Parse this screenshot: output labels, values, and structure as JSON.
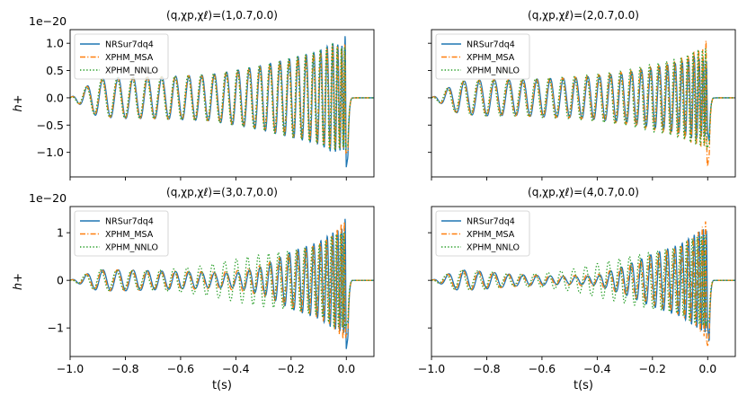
{
  "chart_data": [
    {
      "type": "line",
      "title": "(q,χp,χℓ)=(1,0.7,0.0)",
      "xlabel": "",
      "ylabel": "h+",
      "offset_text": "1e−20",
      "xlim": [
        -1.0,
        0.1
      ],
      "ylim": [
        -1.45,
        1.25
      ],
      "xticks": [
        -1.0,
        -0.8,
        -0.6,
        -0.4,
        -0.2,
        0.0
      ],
      "xtick_labels": [],
      "yticks": [
        -1.0,
        -0.5,
        0.0,
        0.5,
        1.0
      ],
      "ytick_labels": [
        "−1.0",
        "−0.5",
        "0.0",
        "0.5",
        "1.0"
      ],
      "legend_position": "upper-left",
      "series": [
        {
          "name": "NRSur7dq4",
          "color": "#1f77b4",
          "dash": "solid",
          "points": [
            [
              -1.0,
              0.0
            ],
            [
              -0.9,
              0.35
            ],
            [
              -0.8,
              -0.38
            ],
            [
              -0.7,
              0.38
            ],
            [
              -0.6,
              -0.4
            ],
            [
              -0.5,
              0.42
            ],
            [
              -0.4,
              -0.5
            ],
            [
              -0.3,
              0.6
            ],
            [
              -0.2,
              -0.72
            ],
            [
              -0.1,
              0.85
            ],
            [
              -0.05,
              -1.0
            ],
            [
              -0.01,
              0.95
            ],
            [
              0.0,
              -1.28
            ],
            [
              0.005,
              1.12
            ],
            [
              0.02,
              0.05
            ],
            [
              0.1,
              0.0
            ]
          ]
        },
        {
          "name": "XPHM_MSA",
          "color": "#ff7f0e",
          "dash": "dashdot",
          "points": [
            [
              -1.0,
              0.0
            ],
            [
              -0.9,
              0.34
            ],
            [
              -0.8,
              -0.37
            ],
            [
              -0.7,
              0.38
            ],
            [
              -0.6,
              -0.4
            ],
            [
              -0.5,
              0.42
            ],
            [
              -0.4,
              -0.49
            ],
            [
              -0.3,
              0.58
            ],
            [
              -0.2,
              -0.7
            ],
            [
              -0.1,
              0.82
            ],
            [
              -0.05,
              -0.95
            ],
            [
              -0.01,
              0.92
            ],
            [
              0.0,
              -1.05
            ],
            [
              0.005,
              1.05
            ],
            [
              0.02,
              0.05
            ],
            [
              0.1,
              0.0
            ]
          ]
        },
        {
          "name": "XPHM_NNLO",
          "color": "#2ca02c",
          "dash": "dotted",
          "points": [
            [
              -1.0,
              0.0
            ],
            [
              -0.9,
              0.34
            ],
            [
              -0.8,
              -0.37
            ],
            [
              -0.7,
              0.38
            ],
            [
              -0.6,
              -0.4
            ],
            [
              -0.5,
              0.43
            ],
            [
              -0.4,
              -0.5
            ],
            [
              -0.3,
              0.6
            ],
            [
              -0.2,
              -0.72
            ],
            [
              -0.1,
              0.84
            ],
            [
              -0.05,
              -0.98
            ],
            [
              -0.01,
              0.9
            ],
            [
              0.0,
              -1.0
            ],
            [
              0.005,
              0.98
            ],
            [
              0.02,
              0.05
            ],
            [
              0.1,
              0.0
            ]
          ]
        }
      ]
    },
    {
      "type": "line",
      "title": "(q,χp,χℓ)=(2,0.7,0.0)",
      "xlabel": "",
      "ylabel": "",
      "offset_text": "",
      "xlim": [
        -1.0,
        0.1
      ],
      "ylim": [
        -1.45,
        1.25
      ],
      "xticks": [
        -1.0,
        -0.8,
        -0.6,
        -0.4,
        -0.2,
        0.0
      ],
      "xtick_labels": [],
      "yticks": [
        -1.0,
        -0.5,
        0.0,
        0.5,
        1.0
      ],
      "ytick_labels": [],
      "legend_position": "upper-left",
      "series": [
        {
          "name": "NRSur7dq4",
          "color": "#1f77b4",
          "dash": "solid",
          "points": [
            [
              -1.0,
              0.0
            ],
            [
              -0.9,
              0.3
            ],
            [
              -0.8,
              -0.33
            ],
            [
              -0.7,
              0.32
            ],
            [
              -0.6,
              -0.35
            ],
            [
              -0.5,
              0.36
            ],
            [
              -0.4,
              -0.4
            ],
            [
              -0.3,
              0.45
            ],
            [
              -0.2,
              -0.55
            ],
            [
              -0.1,
              0.65
            ],
            [
              -0.05,
              -0.75
            ],
            [
              -0.01,
              0.7
            ],
            [
              0.0,
              -0.65
            ],
            [
              0.005,
              0.8
            ],
            [
              0.02,
              0.05
            ],
            [
              0.1,
              0.0
            ]
          ]
        },
        {
          "name": "XPHM_MSA",
          "color": "#ff7f0e",
          "dash": "dashdot",
          "points": [
            [
              -1.0,
              0.0
            ],
            [
              -0.9,
              0.3
            ],
            [
              -0.8,
              -0.33
            ],
            [
              -0.7,
              0.33
            ],
            [
              -0.6,
              -0.35
            ],
            [
              -0.5,
              0.37
            ],
            [
              -0.4,
              -0.42
            ],
            [
              -0.3,
              0.48
            ],
            [
              -0.2,
              -0.58
            ],
            [
              -0.1,
              0.7
            ],
            [
              -0.05,
              -0.85
            ],
            [
              -0.01,
              0.9
            ],
            [
              0.0,
              -1.3
            ],
            [
              0.005,
              1.12
            ],
            [
              0.02,
              0.05
            ],
            [
              0.1,
              0.0
            ]
          ]
        },
        {
          "name": "XPHM_NNLO",
          "color": "#2ca02c",
          "dash": "dotted",
          "points": [
            [
              -1.0,
              0.0
            ],
            [
              -0.9,
              0.3
            ],
            [
              -0.8,
              -0.33
            ],
            [
              -0.7,
              0.33
            ],
            [
              -0.6,
              -0.36
            ],
            [
              -0.5,
              0.38
            ],
            [
              -0.4,
              -0.44
            ],
            [
              -0.3,
              0.5
            ],
            [
              -0.2,
              -0.62
            ],
            [
              -0.1,
              0.72
            ],
            [
              -0.05,
              -0.85
            ],
            [
              -0.01,
              0.88
            ],
            [
              0.0,
              -1.0
            ],
            [
              0.005,
              0.95
            ],
            [
              0.02,
              0.05
            ],
            [
              0.1,
              0.0
            ]
          ]
        }
      ]
    },
    {
      "type": "line",
      "title": "(q,χp,χℓ)=(3,0.7,0.0)",
      "xlabel": "t(s)",
      "ylabel": "h+",
      "offset_text": "1e−20",
      "xlim": [
        -1.0,
        0.1
      ],
      "ylim": [
        -1.6,
        1.55
      ],
      "xticks": [
        -1.0,
        -0.8,
        -0.6,
        -0.4,
        -0.2,
        0.0
      ],
      "xtick_labels": [
        "−1.0",
        "−0.8",
        "−0.6",
        "−0.4",
        "−0.2",
        "0.0"
      ],
      "yticks": [
        -1,
        0,
        1
      ],
      "ytick_labels": [
        "−1",
        "0",
        "1"
      ],
      "legend_position": "upper-left",
      "series": [
        {
          "name": "NRSur7dq4",
          "color": "#1f77b4",
          "dash": "solid",
          "points": [
            [
              -1.0,
              0.0
            ],
            [
              -0.9,
              0.22
            ],
            [
              -0.8,
              -0.22
            ],
            [
              -0.7,
              0.2
            ],
            [
              -0.6,
              -0.18
            ],
            [
              -0.5,
              0.16
            ],
            [
              -0.4,
              -0.15
            ],
            [
              -0.3,
              0.3
            ],
            [
              -0.2,
              -0.6
            ],
            [
              -0.1,
              0.8
            ],
            [
              -0.05,
              -1.0
            ],
            [
              -0.01,
              1.1
            ],
            [
              0.0,
              -1.45
            ],
            [
              0.005,
              1.25
            ],
            [
              0.02,
              0.05
            ],
            [
              0.1,
              0.0
            ]
          ]
        },
        {
          "name": "XPHM_MSA",
          "color": "#ff7f0e",
          "dash": "dashdot",
          "points": [
            [
              -1.0,
              0.0
            ],
            [
              -0.9,
              0.22
            ],
            [
              -0.8,
              -0.22
            ],
            [
              -0.7,
              0.2
            ],
            [
              -0.6,
              -0.19
            ],
            [
              -0.5,
              0.18
            ],
            [
              -0.4,
              -0.2
            ],
            [
              -0.3,
              0.32
            ],
            [
              -0.2,
              -0.58
            ],
            [
              -0.1,
              0.78
            ],
            [
              -0.05,
              -0.95
            ],
            [
              -0.01,
              1.25
            ],
            [
              0.0,
              -1.2
            ],
            [
              0.005,
              1.15
            ],
            [
              0.02,
              0.05
            ],
            [
              0.1,
              0.0
            ]
          ]
        },
        {
          "name": "XPHM_NNLO",
          "color": "#2ca02c",
          "dash": "dotted",
          "points": [
            [
              -1.0,
              0.0
            ],
            [
              -0.9,
              0.22
            ],
            [
              -0.8,
              -0.2
            ],
            [
              -0.7,
              0.2
            ],
            [
              -0.6,
              -0.25
            ],
            [
              -0.5,
              0.32
            ],
            [
              -0.4,
              -0.45
            ],
            [
              -0.3,
              0.55
            ],
            [
              -0.2,
              -0.62
            ],
            [
              -0.1,
              0.72
            ],
            [
              -0.05,
              -0.95
            ],
            [
              -0.01,
              1.0
            ],
            [
              0.0,
              -1.05
            ],
            [
              0.005,
              0.95
            ],
            [
              0.02,
              0.05
            ],
            [
              0.1,
              0.0
            ]
          ]
        }
      ]
    },
    {
      "type": "line",
      "title": "(q,χp,χℓ)=(4,0.7,0.0)",
      "xlabel": "t(s)",
      "ylabel": "",
      "offset_text": "",
      "xlim": [
        -1.0,
        0.1
      ],
      "ylim": [
        -1.6,
        1.55
      ],
      "xticks": [
        -1.0,
        -0.8,
        -0.6,
        -0.4,
        -0.2,
        0.0
      ],
      "xtick_labels": [
        "−1.0",
        "−0.8",
        "−0.6",
        "−0.4",
        "−0.2",
        "0.0"
      ],
      "yticks": [
        -1,
        0,
        1
      ],
      "ytick_labels": [],
      "legend_position": "upper-left",
      "series": [
        {
          "name": "NRSur7dq4",
          "color": "#1f77b4",
          "dash": "solid",
          "points": [
            [
              -1.0,
              0.0
            ],
            [
              -0.9,
              0.22
            ],
            [
              -0.8,
              -0.18
            ],
            [
              -0.7,
              0.12
            ],
            [
              -0.6,
              -0.1
            ],
            [
              -0.5,
              0.08
            ],
            [
              -0.4,
              -0.1
            ],
            [
              -0.3,
              0.3
            ],
            [
              -0.2,
              -0.55
            ],
            [
              -0.1,
              0.75
            ],
            [
              -0.05,
              -0.95
            ],
            [
              -0.01,
              1.1
            ],
            [
              0.0,
              -1.0
            ],
            [
              0.005,
              1.3
            ],
            [
              0.02,
              0.05
            ],
            [
              0.1,
              0.0
            ]
          ]
        },
        {
          "name": "XPHM_MSA",
          "color": "#ff7f0e",
          "dash": "dashdot",
          "points": [
            [
              -1.0,
              0.0
            ],
            [
              -0.9,
              0.22
            ],
            [
              -0.8,
              -0.18
            ],
            [
              -0.7,
              0.13
            ],
            [
              -0.6,
              -0.1
            ],
            [
              -0.5,
              0.1
            ],
            [
              -0.4,
              -0.12
            ],
            [
              -0.3,
              0.3
            ],
            [
              -0.2,
              -0.52
            ],
            [
              -0.1,
              0.72
            ],
            [
              -0.05,
              -0.9
            ],
            [
              -0.01,
              1.2
            ],
            [
              0.0,
              -1.45
            ],
            [
              0.005,
              1.2
            ],
            [
              0.02,
              0.05
            ],
            [
              0.1,
              0.0
            ]
          ]
        },
        {
          "name": "XPHM_NNLO",
          "color": "#2ca02c",
          "dash": "dotted",
          "points": [
            [
              -1.0,
              0.0
            ],
            [
              -0.9,
              0.22
            ],
            [
              -0.8,
              -0.18
            ],
            [
              -0.7,
              0.12
            ],
            [
              -0.6,
              -0.15
            ],
            [
              -0.5,
              0.22
            ],
            [
              -0.4,
              -0.35
            ],
            [
              -0.3,
              0.48
            ],
            [
              -0.2,
              -0.6
            ],
            [
              -0.1,
              0.7
            ],
            [
              -0.05,
              -0.9
            ],
            [
              -0.01,
              0.95
            ],
            [
              0.0,
              -1.0
            ],
            [
              0.005,
              0.9
            ],
            [
              0.02,
              0.05
            ],
            [
              0.1,
              0.0
            ]
          ]
        }
      ]
    }
  ]
}
